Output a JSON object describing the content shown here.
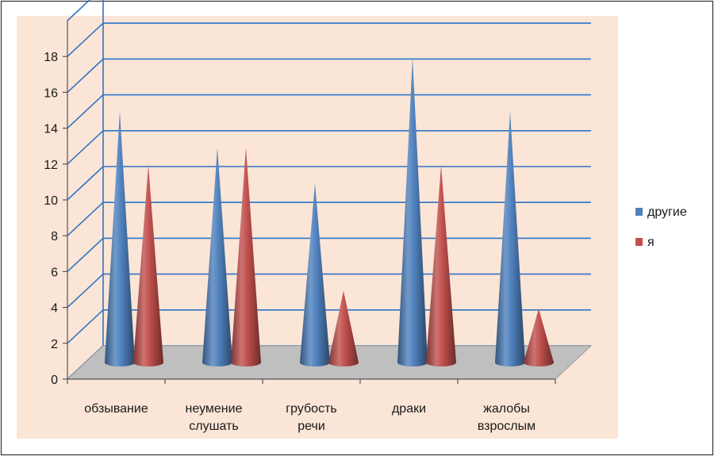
{
  "chart_data": {
    "type": "bar",
    "style": "3d-cone",
    "categories": [
      [
        "обзывание"
      ],
      [
        "неумение",
        "слушать"
      ],
      [
        "грубость",
        "речи"
      ],
      [
        "драки"
      ],
      [
        "жалобы",
        "взрослым"
      ]
    ],
    "series": [
      {
        "name": "другие",
        "values": [
          14,
          12,
          10,
          17,
          14
        ],
        "color": "#4f81bd"
      },
      {
        "name": "я",
        "values": [
          11,
          12,
          4,
          11,
          3
        ],
        "color": "#c0504d"
      }
    ],
    "yticks": [
      0,
      2,
      4,
      6,
      8,
      10,
      12,
      14,
      16,
      18
    ],
    "ylim": [
      0,
      20
    ],
    "grid": true,
    "legend_position": "right",
    "colors": {
      "background": "#fbe5d6",
      "gridline": "#2e75c8",
      "floor": "#bfbfbf",
      "frame": "#555555"
    }
  }
}
